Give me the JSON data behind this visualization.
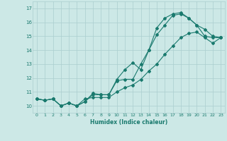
{
  "xlabel": "Humidex (Indice chaleur)",
  "xlim": [
    -0.5,
    23.5
  ],
  "ylim": [
    9.5,
    17.5
  ],
  "yticks": [
    10,
    11,
    12,
    13,
    14,
    15,
    16,
    17
  ],
  "xticks": [
    0,
    1,
    2,
    3,
    4,
    5,
    6,
    7,
    8,
    9,
    10,
    11,
    12,
    13,
    14,
    15,
    16,
    17,
    18,
    19,
    20,
    21,
    22,
    23
  ],
  "bg_color": "#cce8e6",
  "grid_color": "#aacece",
  "line_color": "#1a7a6e",
  "line1_y": [
    10.5,
    10.4,
    10.5,
    10.0,
    10.2,
    10.0,
    10.3,
    10.9,
    10.8,
    10.8,
    11.9,
    12.6,
    13.1,
    12.6,
    14.0,
    15.1,
    15.8,
    16.5,
    16.6,
    16.3,
    15.8,
    15.0,
    14.9,
    14.9
  ],
  "line2_y": [
    10.5,
    10.4,
    10.5,
    10.0,
    10.2,
    10.0,
    10.3,
    10.8,
    10.8,
    10.8,
    11.8,
    11.9,
    11.9,
    13.0,
    14.0,
    15.6,
    16.3,
    16.6,
    16.7,
    16.3,
    15.8,
    15.5,
    15.0,
    14.9
  ],
  "line3_y": [
    10.5,
    10.4,
    10.5,
    10.0,
    10.2,
    10.0,
    10.5,
    10.6,
    10.6,
    10.6,
    11.0,
    11.3,
    11.5,
    11.9,
    12.5,
    13.0,
    13.7,
    14.3,
    14.9,
    15.2,
    15.3,
    14.9,
    14.5,
    14.9
  ]
}
